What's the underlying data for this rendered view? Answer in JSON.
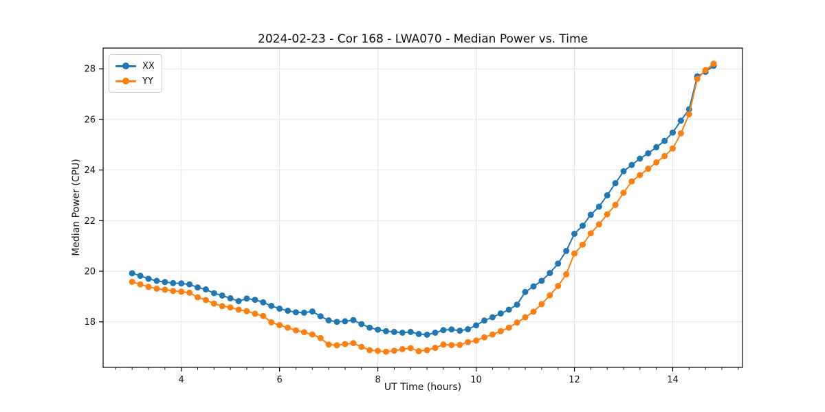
{
  "chart_data": {
    "type": "line",
    "title": "2024-02-23 - Cor 168 - LWA070 - Median Power vs. Time",
    "xlabel": "UT Time (hours)",
    "ylabel": "Median Power (CPU)",
    "xlim": [
      2.41,
      15.42
    ],
    "ylim": [
      16.2,
      28.82
    ],
    "x_major_ticks": [
      4,
      6,
      8,
      10,
      12,
      14
    ],
    "x_minor_tick_step": 0.3333,
    "y_major_ticks": [
      18,
      20,
      22,
      24,
      26,
      28
    ],
    "grid": true,
    "grid_color": "#e5e5e5",
    "legend_position": "upper-left",
    "marker": "circle",
    "x": [
      3.0,
      3.167,
      3.333,
      3.5,
      3.667,
      3.833,
      4.0,
      4.167,
      4.333,
      4.5,
      4.667,
      4.833,
      5.0,
      5.167,
      5.333,
      5.5,
      5.667,
      5.833,
      6.0,
      6.167,
      6.333,
      6.5,
      6.667,
      6.833,
      7.0,
      7.167,
      7.333,
      7.5,
      7.667,
      7.833,
      8.0,
      8.167,
      8.333,
      8.5,
      8.667,
      8.833,
      9.0,
      9.167,
      9.333,
      9.5,
      9.667,
      9.833,
      10.0,
      10.167,
      10.333,
      10.5,
      10.667,
      10.833,
      11.0,
      11.167,
      11.333,
      11.5,
      11.667,
      11.833,
      12.0,
      12.167,
      12.333,
      12.5,
      12.667,
      12.833,
      13.0,
      13.167,
      13.333,
      13.5,
      13.667,
      13.833,
      14.0,
      14.167,
      14.333,
      14.5,
      14.667,
      14.833
    ],
    "series": [
      {
        "name": "XX",
        "color": "#1f77b4",
        "values": [
          19.92,
          19.82,
          19.7,
          19.62,
          19.57,
          19.53,
          19.52,
          19.48,
          19.36,
          19.28,
          19.13,
          19.04,
          18.93,
          18.82,
          18.92,
          18.87,
          18.77,
          18.63,
          18.52,
          18.44,
          18.38,
          18.36,
          18.41,
          18.22,
          18.06,
          18.0,
          18.02,
          18.07,
          17.91,
          17.77,
          17.69,
          17.63,
          17.6,
          17.57,
          17.6,
          17.52,
          17.49,
          17.57,
          17.67,
          17.7,
          17.65,
          17.71,
          17.86,
          18.05,
          18.18,
          18.33,
          18.48,
          18.68,
          19.18,
          19.4,
          19.62,
          19.93,
          20.3,
          20.8,
          21.48,
          21.8,
          22.23,
          22.55,
          23.0,
          23.48,
          23.95,
          24.2,
          24.45,
          24.66,
          24.9,
          25.15,
          25.48,
          25.95,
          26.4,
          27.7,
          27.88,
          28.12
        ]
      },
      {
        "name": "YY",
        "color": "#ff7f0e",
        "values": [
          19.58,
          19.48,
          19.38,
          19.31,
          19.27,
          19.22,
          19.19,
          19.15,
          18.97,
          18.86,
          18.72,
          18.62,
          18.57,
          18.48,
          18.42,
          18.32,
          18.23,
          17.98,
          17.87,
          17.77,
          17.66,
          17.59,
          17.5,
          17.36,
          17.1,
          17.07,
          17.12,
          17.16,
          17.01,
          16.88,
          16.85,
          16.82,
          16.86,
          16.92,
          16.96,
          16.84,
          16.88,
          16.97,
          17.1,
          17.08,
          17.09,
          17.2,
          17.26,
          17.39,
          17.5,
          17.63,
          17.77,
          17.97,
          18.18,
          18.4,
          18.7,
          19.05,
          19.42,
          19.88,
          20.7,
          21.05,
          21.5,
          21.85,
          22.25,
          22.62,
          23.1,
          23.55,
          23.8,
          24.05,
          24.3,
          24.55,
          24.85,
          25.45,
          26.2,
          27.6,
          27.95,
          28.2
        ]
      }
    ]
  }
}
